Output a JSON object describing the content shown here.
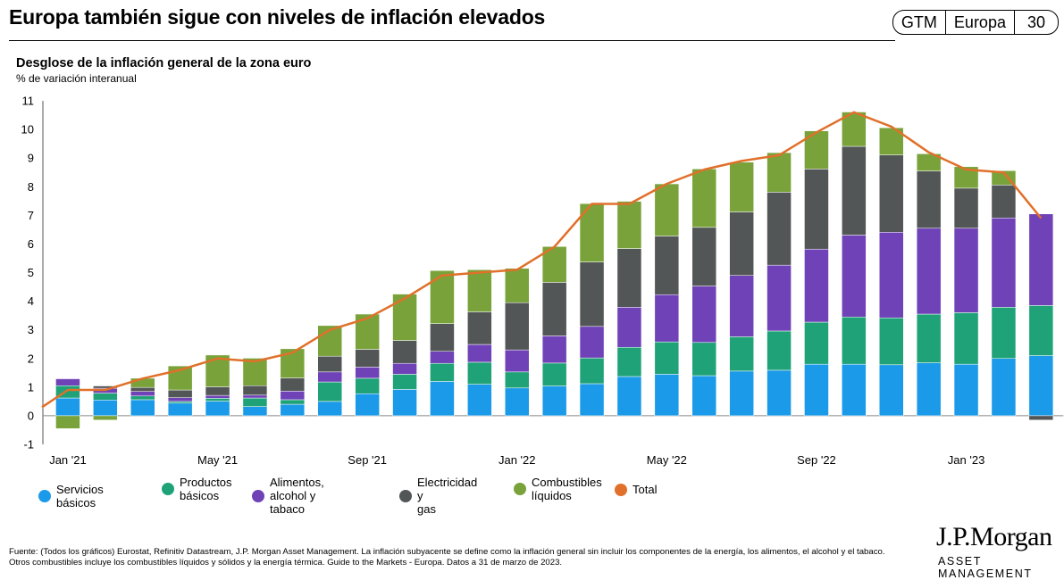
{
  "header": {
    "title": "Europa también sigue con niveles de inflación elevados",
    "tags": [
      "GTM",
      "Europa",
      "30"
    ]
  },
  "chart_title": "Desglose de la inflación general de la zona euro",
  "chart_subtitle": "% de variación interanual",
  "legend": [
    {
      "label": "Servicios básicos",
      "color": "#1a9ae8"
    },
    {
      "label": "Productos\nbásicos",
      "color": "#1fa277"
    },
    {
      "label": "Alimentos, alcohol y\ntabaco",
      "color": "#6f42b8"
    },
    {
      "label": "Electricidad y\ngas",
      "color": "#535657"
    },
    {
      "label": "Combustibles\nlíquidos",
      "color": "#79a33a"
    },
    {
      "label": "Total",
      "color": "#e0702a"
    }
  ],
  "chart_data": {
    "type": "bar",
    "stacked": true,
    "categories": [
      "Jan '21",
      "Feb '21",
      "Mar '21",
      "Apr '21",
      "May '21",
      "Jun '21",
      "Jul '21",
      "Aug '21",
      "Sep '21",
      "Oct '21",
      "Nov '21",
      "Dec '21",
      "Jan '22",
      "Feb '22",
      "Mar '22",
      "Apr '22",
      "May '22",
      "Jun '22",
      "Jul '22",
      "Aug '22",
      "Sep '22",
      "Oct '22",
      "Nov '22",
      "Dec '22",
      "Jan '23",
      "Feb '23",
      "Mar '23"
    ],
    "x_tick_labels": [
      "Jan '21",
      "May '21",
      "Sep '21",
      "Jan '22",
      "May '22",
      "Sep '22",
      "Jan '23"
    ],
    "ylim": [
      -1,
      11
    ],
    "yticks": [
      -1,
      0,
      1,
      2,
      3,
      4,
      5,
      6,
      7,
      8,
      9,
      10,
      11
    ],
    "series": [
      {
        "name": "Servicios básicos",
        "color": "#1a9ae8",
        "values": [
          0.62,
          0.55,
          0.56,
          0.44,
          0.51,
          0.32,
          0.4,
          0.5,
          0.77,
          0.92,
          1.2,
          1.1,
          0.97,
          1.04,
          1.12,
          1.37,
          1.45,
          1.4,
          1.56,
          1.59,
          1.8,
          1.8,
          1.78,
          1.85,
          1.8,
          2.0,
          2.1
        ]
      },
      {
        "name": "Productos básicos",
        "color": "#1fa277",
        "values": [
          0.43,
          0.24,
          0.13,
          0.06,
          0.1,
          0.3,
          0.16,
          0.68,
          0.54,
          0.53,
          0.63,
          0.77,
          0.56,
          0.8,
          0.9,
          1.02,
          1.13,
          1.16,
          1.2,
          1.37,
          1.47,
          1.65,
          1.64,
          1.7,
          1.8,
          1.79,
          1.75
        ]
      },
      {
        "name": "Alimentos, alcohol y tabaco",
        "color": "#6f42b8",
        "values": [
          0.24,
          0.17,
          0.16,
          0.13,
          0.1,
          0.1,
          0.3,
          0.35,
          0.39,
          0.38,
          0.42,
          0.62,
          0.77,
          0.95,
          1.1,
          1.4,
          1.65,
          1.97,
          2.14,
          2.3,
          2.55,
          2.86,
          2.99,
          3.0,
          2.95,
          3.12,
          3.2
        ]
      },
      {
        "name": "Electricidad y gas",
        "color": "#535657",
        "values": [
          0.0,
          0.08,
          0.14,
          0.27,
          0.3,
          0.33,
          0.46,
          0.55,
          0.62,
          0.8,
          0.97,
          1.14,
          1.65,
          1.87,
          2.25,
          2.05,
          2.05,
          2.05,
          2.22,
          2.55,
          2.8,
          3.1,
          2.7,
          2.0,
          1.4,
          1.15,
          -0.15
        ]
      },
      {
        "name": "Combustibles líquidos",
        "color": "#79a33a",
        "values": [
          -0.45,
          -0.15,
          0.32,
          0.84,
          1.11,
          0.96,
          1.02,
          1.07,
          1.23,
          1.62,
          1.85,
          1.47,
          1.2,
          1.25,
          2.04,
          1.65,
          1.82,
          2.04,
          1.74,
          1.38,
          1.33,
          1.2,
          0.95,
          0.6,
          0.75,
          0.5,
          0.0
        ]
      },
      {
        "name": "Total",
        "color": "#e0702a",
        "line": true,
        "values": [
          0.9,
          0.9,
          1.3,
          1.6,
          2.0,
          1.9,
          2.2,
          3.0,
          3.4,
          4.1,
          4.9,
          5.0,
          5.1,
          5.9,
          7.4,
          7.4,
          8.1,
          8.6,
          8.9,
          9.1,
          9.9,
          10.6,
          10.1,
          9.2,
          8.6,
          8.5,
          6.9
        ]
      }
    ]
  },
  "footnote": "Fuente: (Todos los gráficos) Eurostat, Refinitiv Datastream, J.P. Morgan Asset Management. La inflación subyacente se define como la inflación general sin incluir los componentes de la energía, los alimentos, el alcohol y el tabaco. Otros combustibles incluye los combustibles líquidos y sólidos y la energía térmica. Guide to the Markets - Europa. Datos a 31 de marzo de 2023.",
  "logo": {
    "name": "J.P.Morgan",
    "sub": "ASSET MANAGEMENT"
  }
}
